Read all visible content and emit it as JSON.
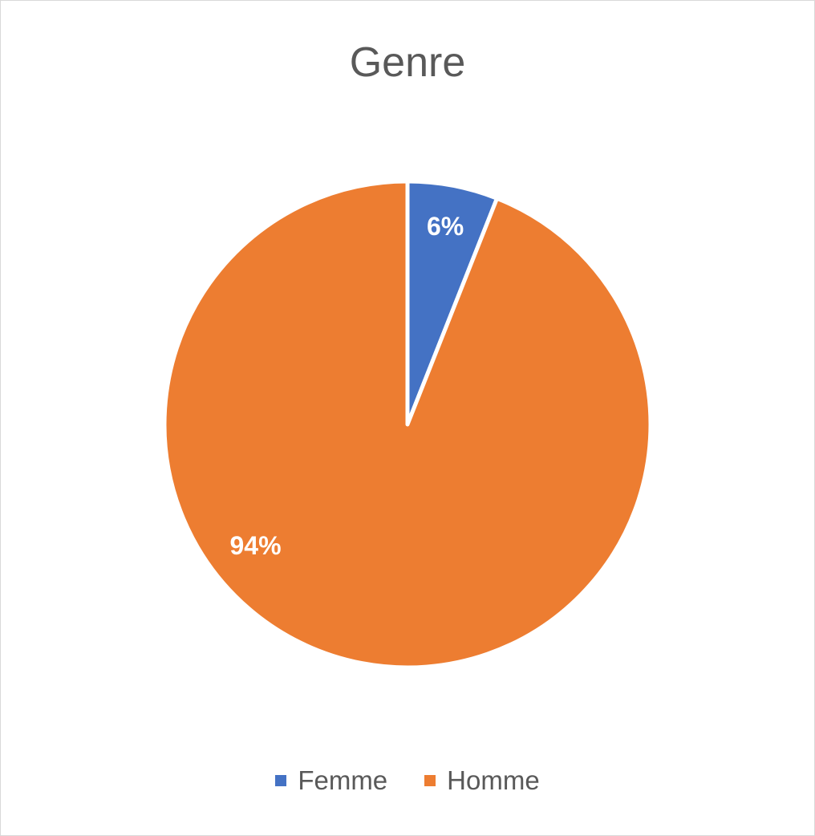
{
  "chart_data": {
    "type": "pie",
    "title": "Genre",
    "series": [
      {
        "values": [
          6,
          94
        ]
      }
    ],
    "categories": [
      "Femme",
      "Homme"
    ],
    "values": [
      6,
      94
    ],
    "data_labels": [
      "6%",
      "94%"
    ],
    "colors": [
      "#4472c4",
      "#ed7d31"
    ],
    "legend_position": "bottom"
  }
}
